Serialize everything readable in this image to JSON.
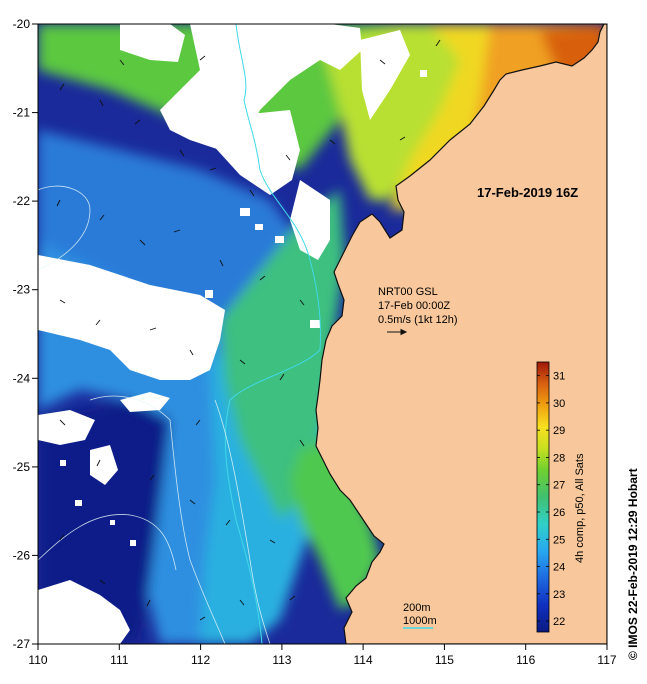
{
  "axes": {
    "x_ticks": [
      "110",
      "111",
      "112",
      "113",
      "114",
      "115",
      "116",
      "117"
    ],
    "y_ticks": [
      "-20",
      "-21",
      "-22",
      "-23",
      "-24",
      "-25",
      "-26",
      "-27"
    ],
    "lon_range": [
      110,
      117
    ],
    "lat_range": [
      -27,
      -20
    ]
  },
  "map": {
    "date_label": "17-Feb-2019 16Z",
    "current_info": {
      "line1": "NRT00 GSL",
      "line2": "17-Feb 00:00Z",
      "line3": "0.5m/s (1kt 12h)"
    },
    "isobath_legend": {
      "label_200": "200m",
      "label_1000": "1000m"
    },
    "colorbar": {
      "ticks": [
        "22",
        "23",
        "24",
        "25",
        "26",
        "27",
        "28",
        "29",
        "30",
        "31"
      ],
      "label": "4h comp, p50, All Sats",
      "min": 21.6,
      "max": 31.5
    },
    "credit": "© IMOS 22-Feb-2019 12:29 Hobart"
  },
  "colors": {
    "land": "#f8c89c",
    "cloud": "#ffffff",
    "isobath_200": "#40d8e8",
    "isobath_1000": "#40e0d8"
  }
}
